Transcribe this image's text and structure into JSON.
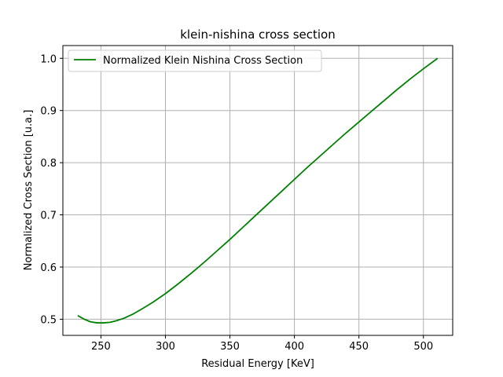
{
  "chart_data": {
    "type": "line",
    "title": "klein-nishina cross section",
    "xlabel": "Residual Energy [KeV]",
    "ylabel": "Normalized Cross Section [u.a.]",
    "xlim": [
      220.5,
      522.7
    ],
    "ylim": [
      0.469,
      1.0245
    ],
    "xticks": [
      250,
      300,
      350,
      400,
      450,
      500
    ],
    "yticks": [
      0.5,
      0.6,
      0.7,
      0.8,
      0.9,
      1.0
    ],
    "xtick_labels": [
      "250",
      "300",
      "350",
      "400",
      "450",
      "500"
    ],
    "ytick_labels": [
      "0.5",
      "0.6",
      "0.7",
      "0.8",
      "0.9",
      "1.0"
    ],
    "grid": true,
    "legend_position": "top-left",
    "series": [
      {
        "name": "Normalized Klein Nishina Cross Section",
        "color": "#008000",
        "x": [
          232.0,
          237.0,
          242.0,
          247.0,
          252.0,
          257.0,
          262.0,
          268.0,
          275.0,
          282.0,
          290.0,
          300.0,
          310.0,
          320.0,
          330.0,
          340.0,
          350.0,
          360.0,
          370.0,
          380.0,
          390.0,
          400.0,
          410.0,
          420.0,
          430.0,
          440.0,
          450.0,
          460.0,
          470.0,
          480.0,
          490.0,
          500.0,
          511.0
        ],
        "y": [
          0.507,
          0.5,
          0.495,
          0.493,
          0.493,
          0.494,
          0.497,
          0.502,
          0.51,
          0.52,
          0.532,
          0.549,
          0.568,
          0.588,
          0.609,
          0.631,
          0.653,
          0.676,
          0.699,
          0.722,
          0.745,
          0.768,
          0.791,
          0.813,
          0.835,
          0.857,
          0.878,
          0.899,
          0.92,
          0.941,
          0.961,
          0.98,
          1.0
        ]
      }
    ]
  }
}
